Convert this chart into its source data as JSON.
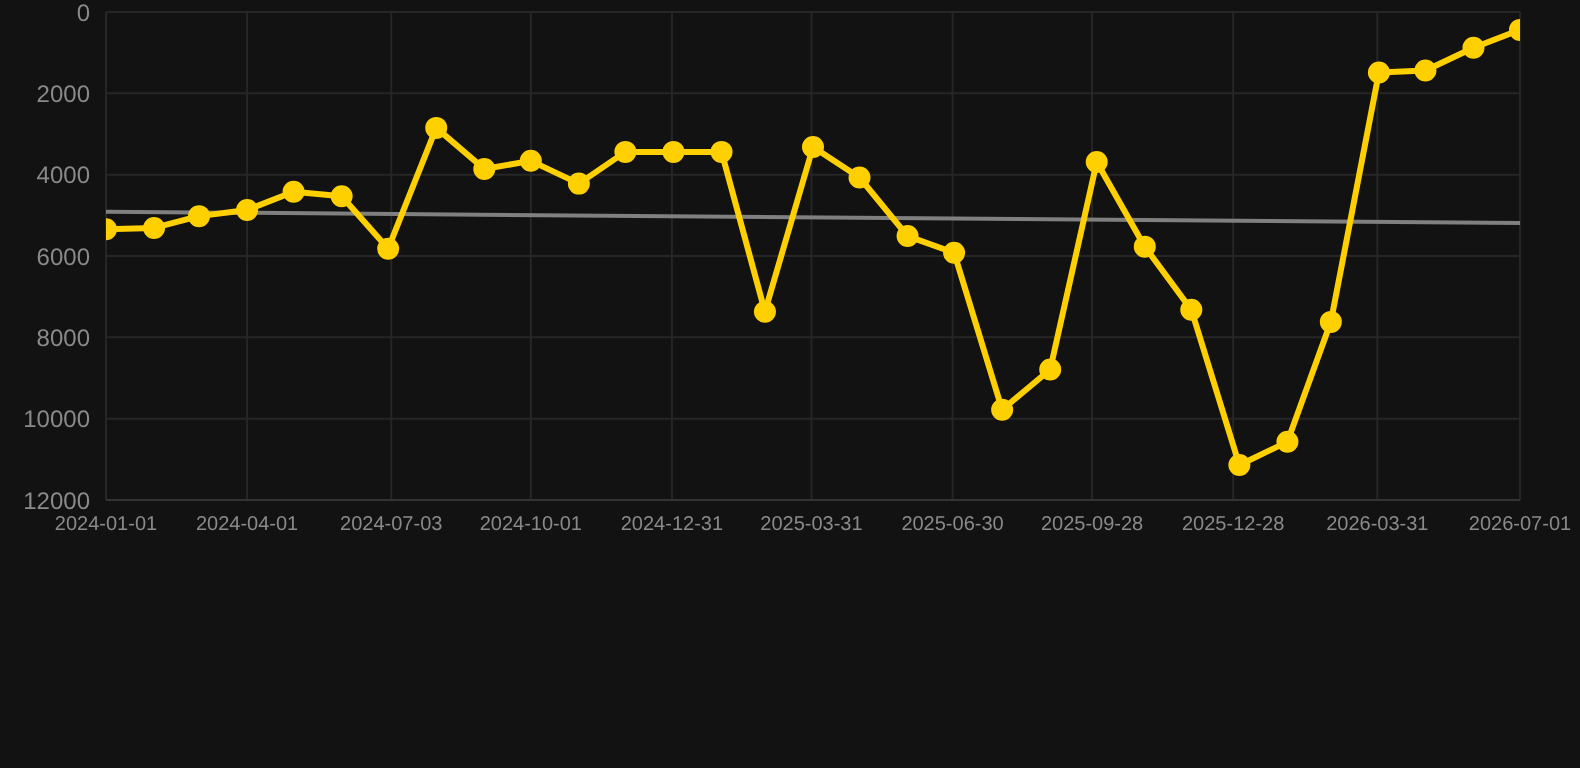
{
  "chart_data": {
    "type": "line",
    "x": [
      "2024-01-01",
      "2024-02-01",
      "2024-03-01",
      "2024-04-01",
      "2024-05-01",
      "2024-06-01",
      "2024-07-01",
      "2024-08-01",
      "2024-09-01",
      "2024-10-01",
      "2024-11-01",
      "2024-12-01",
      "2025-01-01",
      "2025-02-01",
      "2025-03-01",
      "2025-04-01",
      "2025-05-01",
      "2025-06-01",
      "2025-07-01",
      "2025-08-01",
      "2025-09-01",
      "2025-10-01",
      "2025-11-01",
      "2025-12-01",
      "2026-01-01",
      "2026-02-01",
      "2026-03-01",
      "2026-04-01",
      "2026-05-01",
      "2026-06-01",
      "2026-07-01"
    ],
    "series": [
      {
        "color": "#ffd000",
        "marker": "circle",
        "values": [
          5340,
          5310,
          5020,
          4870,
          4420,
          4530,
          5820,
          2850,
          3860,
          3660,
          4220,
          3440,
          3440,
          3440,
          7370,
          3320,
          4070,
          5510,
          5920,
          9780,
          8790,
          3690,
          5770,
          7320,
          11140,
          10570,
          7620,
          1490,
          1440,
          880,
          440
        ]
      },
      {
        "type": "line",
        "color": "#808080",
        "marker": "none",
        "x": [
          "2024-01-01",
          "2026-07-01"
        ],
        "values": [
          4910,
          5190
        ]
      }
    ],
    "xlim": [
      "2024-01-01",
      "2026-07-01"
    ],
    "xticks": [
      {
        "value": "2024-01-01",
        "label": "2024-01-01"
      },
      {
        "value": "2024-04-01",
        "label": "2024-04-01"
      },
      {
        "value": "2024-07-03",
        "label": "2024-07-03"
      },
      {
        "value": "2024-10-01",
        "label": "2024-10-01"
      },
      {
        "value": "2024-12-31",
        "label": "2024-12-31"
      },
      {
        "value": "2025-03-31",
        "label": "2025-03-31"
      },
      {
        "value": "2025-06-30",
        "label": "2025-06-30"
      },
      {
        "value": "2025-09-28",
        "label": "2025-09-28"
      },
      {
        "value": "2025-12-28",
        "label": "2025-12-28"
      },
      {
        "value": "2026-03-31",
        "label": "2026-03-31"
      },
      {
        "value": "2026-07-01",
        "label": "2026-07-01"
      }
    ],
    "ylim": [
      12000,
      0
    ],
    "yticks": [
      0,
      2000,
      4000,
      6000,
      8000,
      10000,
      12000
    ],
    "grid": true,
    "line_style": "solid"
  }
}
